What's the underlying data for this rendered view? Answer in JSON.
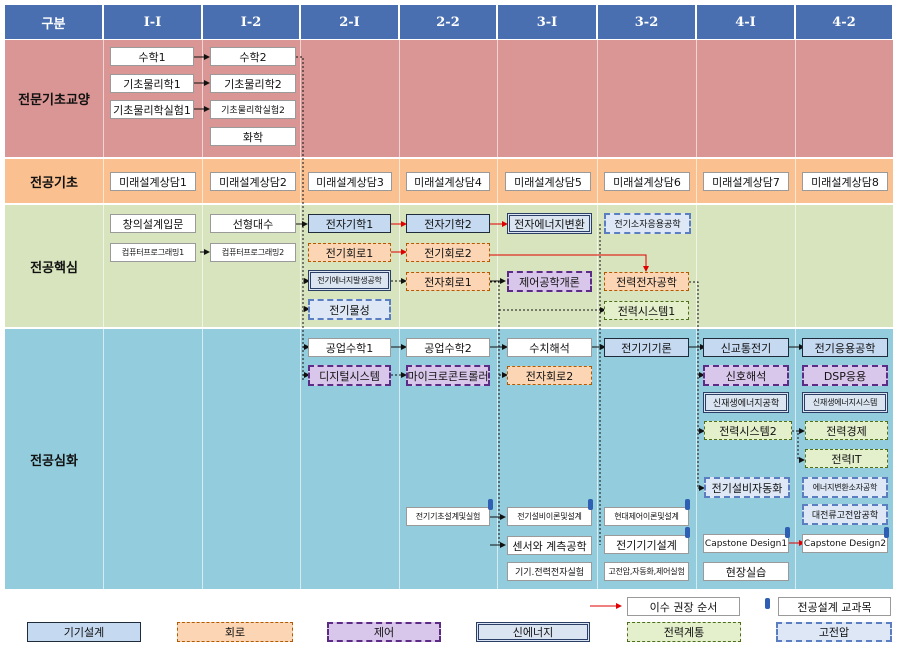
{
  "headers": [
    "구분",
    "I-I",
    "I-2",
    "2-I",
    "2-2",
    "3-I",
    "3-2",
    "4-I",
    "4-2"
  ],
  "rows": {
    "r1": "전문기초교양",
    "r2": "전공기초",
    "r3": "전공핵심",
    "r4": "전공심화"
  },
  "courses": {
    "math1": "수학1",
    "phys1": "기초물리학1",
    "physlab1": "기초물리학실험1",
    "math2": "수학2",
    "phys2": "기초물리학2",
    "physlab2": "기초물리학실험2",
    "chem": "화학",
    "fd1": "미래설계상담1",
    "fd2": "미래설계상담2",
    "fd3": "미래설계상담3",
    "fd4": "미래설계상담4",
    "fd5": "미래설계상담5",
    "fd6": "미래설계상담6",
    "fd7": "미래설계상담7",
    "fd8": "미래설계상담8",
    "creative": "창의설계입문",
    "linalg": "선형대수",
    "prog1": "컴퓨터프로그래밍1",
    "prog2": "컴퓨터프로그래밍2",
    "em1": "전자기학1",
    "em2": "전자기학2",
    "econv": "전자에너지변환",
    "pdev": "전기소자응용공학",
    "circ1": "전기회로1",
    "circ2": "전기회로2",
    "egen": "전기에너지발생공학",
    "elec1": "전자회로1",
    "control": "제어공학개론",
    "pelec": "전력전자공학",
    "emat": "전기물성",
    "psys1": "전력시스템1",
    "emath1": "공업수학1",
    "emath2": "공업수학2",
    "numer": "수치해석",
    "emach": "전기기기론",
    "signal": "신교통전기",
    "eapp": "전기응용공학",
    "digital": "디지털시스템",
    "micro": "마이크로콘트롤러",
    "elec2": "전자회로2",
    "sigan": "신호해석",
    "dsp": "DSP응용",
    "renew": "신재생에너지공학",
    "renewsys": "신재생에너지시스템",
    "psys2": "전력시스템2",
    "pecon": "전력경제",
    "pit": "전력IT",
    "eauto": "전기설비자동화",
    "pconv": "에너지변환소자공학",
    "hv": "대전류고전압공학",
    "lab1": "전기기초설계및실험",
    "lab2": "전기설비이론및설계",
    "lab3": "현대제어이론및설계",
    "sensor": "센서와 계측공학",
    "emdesign": "전기기기설계",
    "cap1": "Capstone  Design1",
    "cap2": "Capstone  Design2",
    "pelab": "기기.전력전자실험",
    "hvlab": "고전압,자동화,제어실험",
    "field": "현장실습"
  },
  "legend": {
    "order": "이수 권장 순서",
    "design": "전공설계 교과목",
    "cat1": "기기설계",
    "cat2": "회로",
    "cat3": "제어",
    "cat4": "신에너지",
    "cat5": "전력계통",
    "cat6": "고전압"
  },
  "colors": {
    "header": "#4a6fb0",
    "row1": "#d99694",
    "row2": "#fac090",
    "row3": "#d7e4bd",
    "row4": "#93cddd",
    "arrow_red": "#e00000"
  }
}
